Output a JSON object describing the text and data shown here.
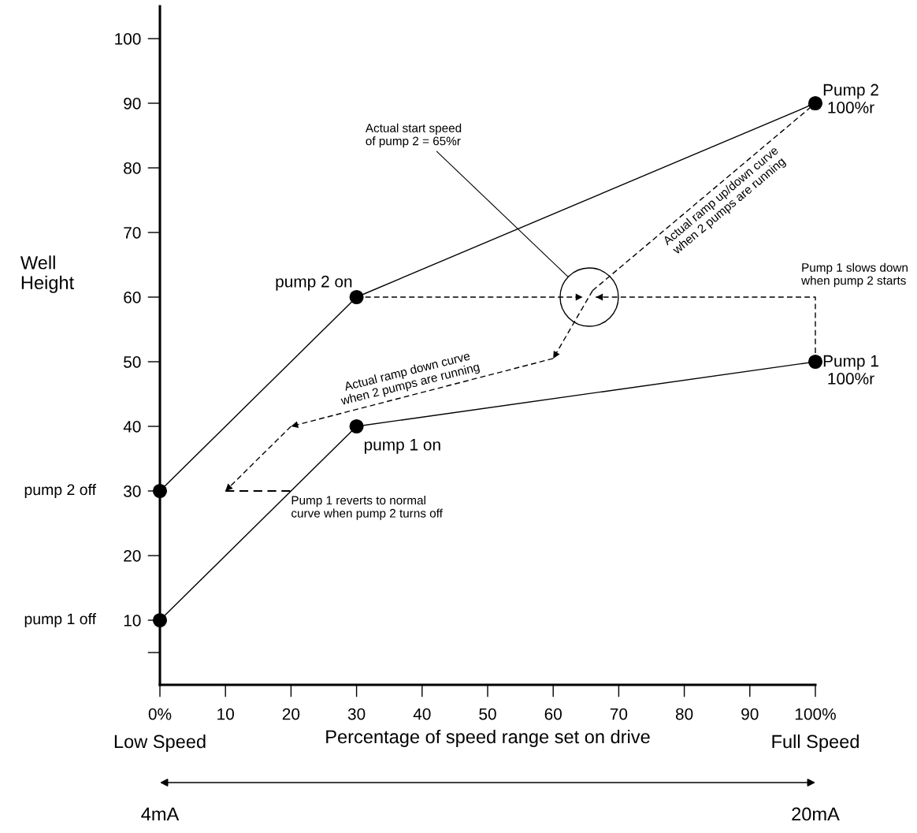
{
  "chart_data": {
    "type": "line",
    "xlabel": "Percentage of speed range set on drive",
    "ylabel": "Well\nHeight",
    "xlim": [
      0,
      100
    ],
    "ylim": [
      0,
      105
    ],
    "xticks": [
      {
        "value": 0,
        "label": "0%"
      },
      10,
      20,
      30,
      40,
      50,
      60,
      70,
      80,
      90,
      {
        "value": 100,
        "label": "100%"
      }
    ],
    "yticks": [
      {
        "value": 5,
        "label": null
      },
      10,
      20,
      30,
      40,
      50,
      60,
      70,
      80,
      90,
      100
    ],
    "series": [
      {
        "color": "#000000",
        "x": [
          0,
          30,
          100
        ],
        "values": [
          10,
          40,
          50
        ],
        "marker": "circle",
        "line_style": "solid"
      },
      {
        "color": "#000000",
        "x": [
          0,
          30,
          100
        ],
        "values": [
          30,
          60,
          90
        ],
        "marker": "circle",
        "line_style": "solid"
      },
      {
        "color": "#000000",
        "x": [
          30,
          64.5
        ],
        "values": [
          60,
          60
        ],
        "marker": "none",
        "line_style": "dashed"
      },
      {
        "color": "#000000",
        "x": [
          100,
          100,
          66.5
        ],
        "values": [
          50,
          60,
          60
        ],
        "marker": "none",
        "line_style": "dashed"
      },
      {
        "color": "#000000",
        "x": [
          66,
          100
        ],
        "values": [
          61,
          90
        ],
        "marker": "none",
        "line_style": "dashed"
      },
      {
        "color": "#000000",
        "x": [
          66,
          60
        ],
        "values": [
          61,
          50.5
        ],
        "marker": "none",
        "line_style": "dashed"
      },
      {
        "color": "#000000",
        "x": [
          60,
          20
        ],
        "values": [
          50.5,
          40
        ],
        "marker": "none",
        "line_style": "dashed"
      },
      {
        "color": "#000000",
        "x": [
          20,
          10
        ],
        "values": [
          40,
          30
        ],
        "marker": "none",
        "line_style": "dashed"
      },
      {
        "type": "step",
        "color": "#000000",
        "x": [
          10,
          20
        ],
        "values": [
          30,
          30
        ],
        "marker": "none",
        "line_style": "dashed"
      }
    ],
    "annotations": [
      "pump 1 off",
      "pump 2 off",
      {
        "text": "pump 1 on",
        "x": 30,
        "y": 40
      },
      {
        "text": "pump 2 on",
        "x": 30,
        "y": 60
      },
      {
        "text": "Pump 1\n100%r",
        "x": 100,
        "y": 50
      },
      {
        "text": "Pump 2\n100%r",
        "x": 100,
        "y": 90
      },
      "Actual start speed\nof pump 2 = 65%r",
      {
        "text": "Actual ramp up/down curve\nwhen 2 pumps are running",
        "x": 84.6,
        "y": 76.9
      },
      {
        "text": "Pump 1 slows down\nwhen pump 2 starts",
        "x": 100,
        "y": 60
      },
      {
        "text": "Actual ramp down curve\nwhen 2 pumps are running",
        "x": 38,
        "y": 44.5
      },
      {
        "text": "Pump 1 reverts to normal\ncurve when pump 2 turns off",
        "x": 20,
        "y": 30
      },
      "Low Speed",
      "Full Speed",
      "4mA",
      "20mA"
    ]
  }
}
